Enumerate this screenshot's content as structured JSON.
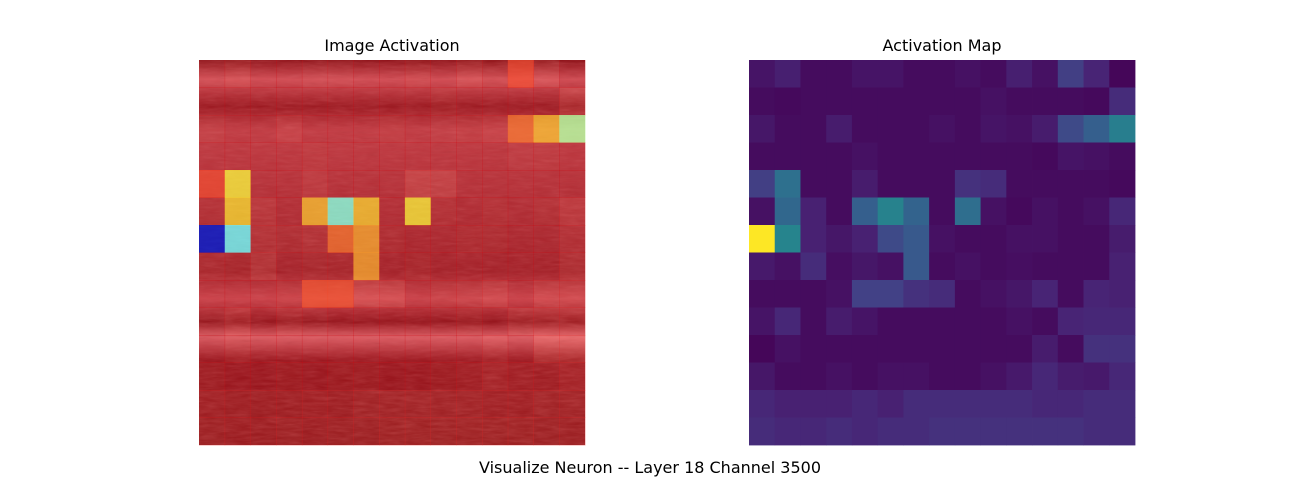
{
  "figure": {
    "suptitle": "Visualize Neuron -- Layer 18  Channel 3500"
  },
  "chart_data": [
    {
      "type": "heatmap",
      "title": "Image Activation",
      "xlabel": "",
      "ylabel": "",
      "grid": false,
      "overlay_colormap": "jet",
      "background": "ultrasound-image",
      "values": [
        [
          0.07,
          0.11,
          0.04,
          0.04,
          0.07,
          0.07,
          0.04,
          0.04,
          0.06,
          0.04,
          0.11,
          0.06,
          0.23,
          0.13,
          0.02
        ],
        [
          0.04,
          0.03,
          0.04,
          0.04,
          0.04,
          0.04,
          0.04,
          0.04,
          0.04,
          0.06,
          0.04,
          0.04,
          0.04,
          0.03,
          0.16
        ],
        [
          0.08,
          0.04,
          0.04,
          0.1,
          0.04,
          0.04,
          0.04,
          0.06,
          0.04,
          0.07,
          0.06,
          0.1,
          0.28,
          0.38,
          0.53
        ],
        [
          0.04,
          0.04,
          0.04,
          0.04,
          0.06,
          0.04,
          0.04,
          0.04,
          0.04,
          0.04,
          0.04,
          0.03,
          0.07,
          0.06,
          0.04
        ],
        [
          0.23,
          0.46,
          0.04,
          0.04,
          0.1,
          0.04,
          0.04,
          0.04,
          0.18,
          0.16,
          0.04,
          0.04,
          0.04,
          0.04,
          0.03
        ],
        [
          0.06,
          0.42,
          0.12,
          0.04,
          0.38,
          0.55,
          0.4,
          0.04,
          0.45,
          0.06,
          0.03,
          0.06,
          0.04,
          0.06,
          0.14
        ],
        [
          1.0,
          0.56,
          0.12,
          0.08,
          0.12,
          0.28,
          0.35,
          0.06,
          0.04,
          0.04,
          0.06,
          0.06,
          0.04,
          0.04,
          0.1
        ],
        [
          0.09,
          0.06,
          0.16,
          0.05,
          0.08,
          0.06,
          0.35,
          0.04,
          0.06,
          0.04,
          0.05,
          0.04,
          0.04,
          0.04,
          0.12
        ],
        [
          0.04,
          0.04,
          0.04,
          0.06,
          0.24,
          0.24,
          0.18,
          0.16,
          0.04,
          0.06,
          0.08,
          0.13,
          0.04,
          0.13,
          0.12
        ],
        [
          0.07,
          0.14,
          0.04,
          0.1,
          0.07,
          0.04,
          0.04,
          0.04,
          0.04,
          0.04,
          0.06,
          0.04,
          0.13,
          0.14,
          0.14
        ],
        [
          0.02,
          0.06,
          0.04,
          0.04,
          0.04,
          0.04,
          0.04,
          0.04,
          0.04,
          0.04,
          0.04,
          0.1,
          0.04,
          0.18,
          0.18
        ],
        [
          0.08,
          0.04,
          0.04,
          0.06,
          0.04,
          0.06,
          0.06,
          0.04,
          0.04,
          0.06,
          0.09,
          0.14,
          0.1,
          0.09,
          0.14
        ],
        [
          0.14,
          0.12,
          0.12,
          0.12,
          0.14,
          0.12,
          0.16,
          0.16,
          0.16,
          0.16,
          0.16,
          0.14,
          0.14,
          0.16,
          0.16
        ],
        [
          0.16,
          0.14,
          0.14,
          0.16,
          0.14,
          0.16,
          0.16,
          0.18,
          0.18,
          0.18,
          0.18,
          0.18,
          0.18,
          0.16,
          0.16
        ]
      ]
    },
    {
      "type": "heatmap",
      "title": "Activation Map",
      "xlabel": "",
      "ylabel": "",
      "grid": false,
      "colormap": "viridis",
      "values": [
        [
          0.07,
          0.11,
          0.04,
          0.04,
          0.07,
          0.07,
          0.04,
          0.04,
          0.06,
          0.04,
          0.11,
          0.06,
          0.23,
          0.13,
          0.02
        ],
        [
          0.04,
          0.03,
          0.04,
          0.04,
          0.04,
          0.04,
          0.04,
          0.04,
          0.04,
          0.06,
          0.04,
          0.04,
          0.04,
          0.03,
          0.16
        ],
        [
          0.08,
          0.04,
          0.04,
          0.1,
          0.04,
          0.04,
          0.04,
          0.06,
          0.04,
          0.07,
          0.06,
          0.1,
          0.28,
          0.38,
          0.53
        ],
        [
          0.04,
          0.04,
          0.04,
          0.04,
          0.06,
          0.04,
          0.04,
          0.04,
          0.04,
          0.04,
          0.04,
          0.03,
          0.07,
          0.06,
          0.04
        ],
        [
          0.23,
          0.46,
          0.04,
          0.04,
          0.1,
          0.04,
          0.04,
          0.04,
          0.18,
          0.16,
          0.04,
          0.04,
          0.04,
          0.04,
          0.03
        ],
        [
          0.06,
          0.42,
          0.12,
          0.04,
          0.38,
          0.55,
          0.4,
          0.04,
          0.45,
          0.06,
          0.03,
          0.06,
          0.04,
          0.06,
          0.14
        ],
        [
          1.0,
          0.56,
          0.12,
          0.08,
          0.12,
          0.28,
          0.35,
          0.06,
          0.04,
          0.04,
          0.06,
          0.06,
          0.04,
          0.04,
          0.1
        ],
        [
          0.09,
          0.06,
          0.16,
          0.05,
          0.08,
          0.06,
          0.35,
          0.04,
          0.06,
          0.04,
          0.05,
          0.04,
          0.04,
          0.04,
          0.12
        ],
        [
          0.04,
          0.04,
          0.04,
          0.06,
          0.24,
          0.24,
          0.18,
          0.16,
          0.04,
          0.06,
          0.08,
          0.13,
          0.04,
          0.13,
          0.12
        ],
        [
          0.07,
          0.14,
          0.04,
          0.1,
          0.07,
          0.04,
          0.04,
          0.04,
          0.04,
          0.04,
          0.06,
          0.04,
          0.13,
          0.14,
          0.14
        ],
        [
          0.02,
          0.06,
          0.04,
          0.04,
          0.04,
          0.04,
          0.04,
          0.04,
          0.04,
          0.04,
          0.04,
          0.1,
          0.04,
          0.18,
          0.18
        ],
        [
          0.08,
          0.04,
          0.04,
          0.06,
          0.04,
          0.06,
          0.06,
          0.04,
          0.04,
          0.06,
          0.09,
          0.14,
          0.1,
          0.09,
          0.14
        ],
        [
          0.14,
          0.12,
          0.12,
          0.12,
          0.14,
          0.12,
          0.16,
          0.16,
          0.16,
          0.16,
          0.16,
          0.14,
          0.14,
          0.16,
          0.16
        ],
        [
          0.16,
          0.14,
          0.14,
          0.16,
          0.14,
          0.16,
          0.16,
          0.18,
          0.18,
          0.18,
          0.18,
          0.18,
          0.18,
          0.16,
          0.16
        ]
      ]
    }
  ]
}
